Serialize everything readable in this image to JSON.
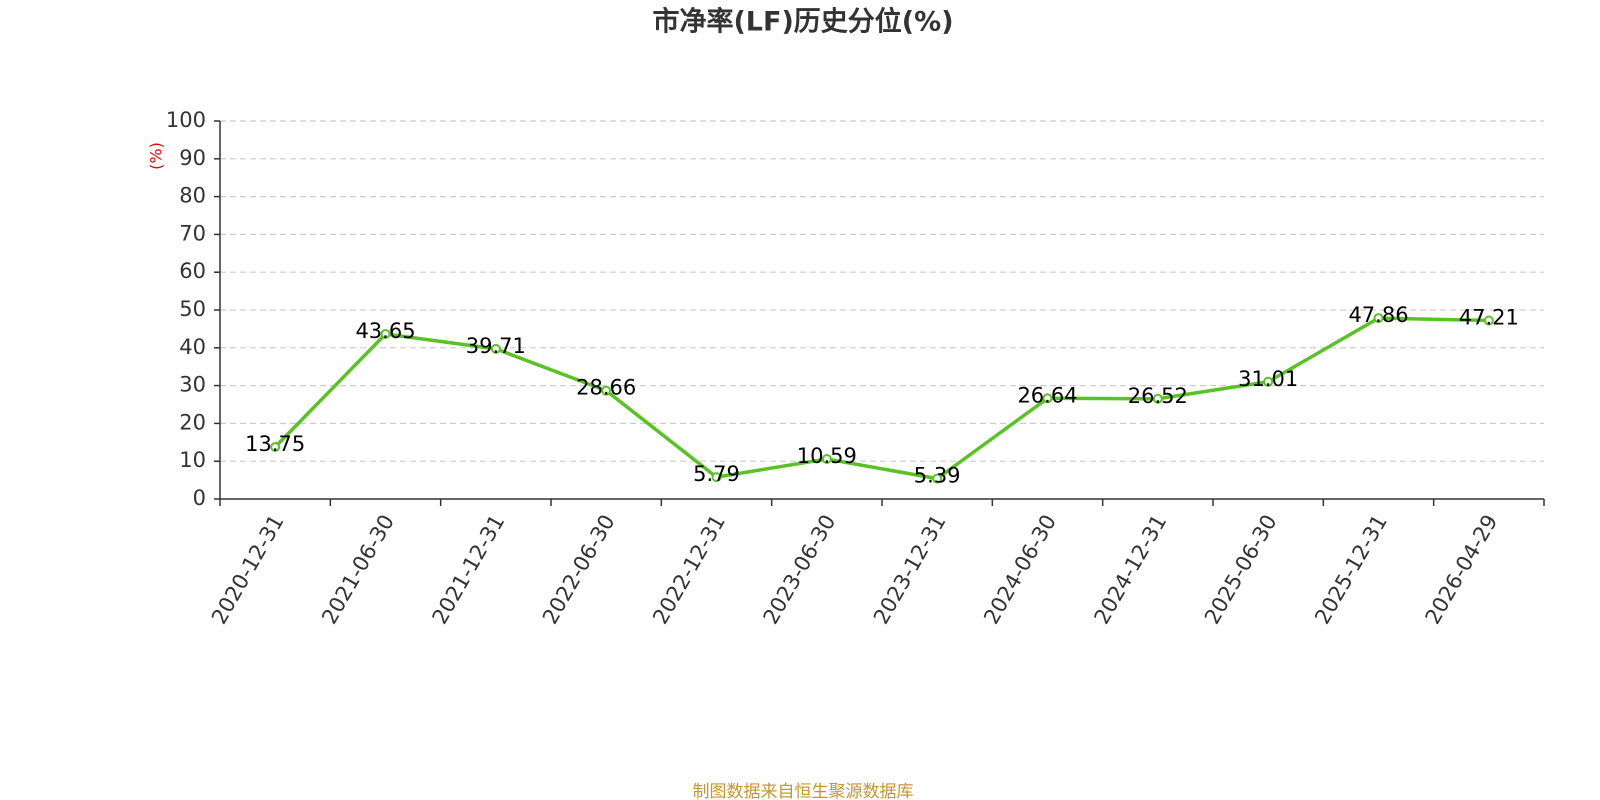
{
  "chart_data": {
    "type": "line",
    "title": "市净率(LF)历史分位(%)",
    "y_label": "(%)",
    "categories": [
      "2020-12-31",
      "2021-06-30",
      "2021-12-31",
      "2022-06-30",
      "2022-12-31",
      "2023-06-30",
      "2023-12-31",
      "2024-06-30",
      "2024-12-31",
      "2025-06-30",
      "2025-12-31",
      "2026-04-29"
    ],
    "series": [
      {
        "name": "市净率(LF)历史分位",
        "color": "#58c323",
        "values": [
          13.75,
          43.65,
          39.71,
          28.66,
          5.79,
          10.59,
          5.39,
          26.64,
          26.52,
          31.01,
          47.86,
          47.21
        ]
      }
    ],
    "ylim": [
      0,
      100
    ],
    "yticks": [
      0,
      10,
      20,
      30,
      40,
      50,
      60,
      70,
      80,
      90,
      100
    ],
    "grid": true,
    "source": "制图数据来自恒生聚源数据库"
  }
}
